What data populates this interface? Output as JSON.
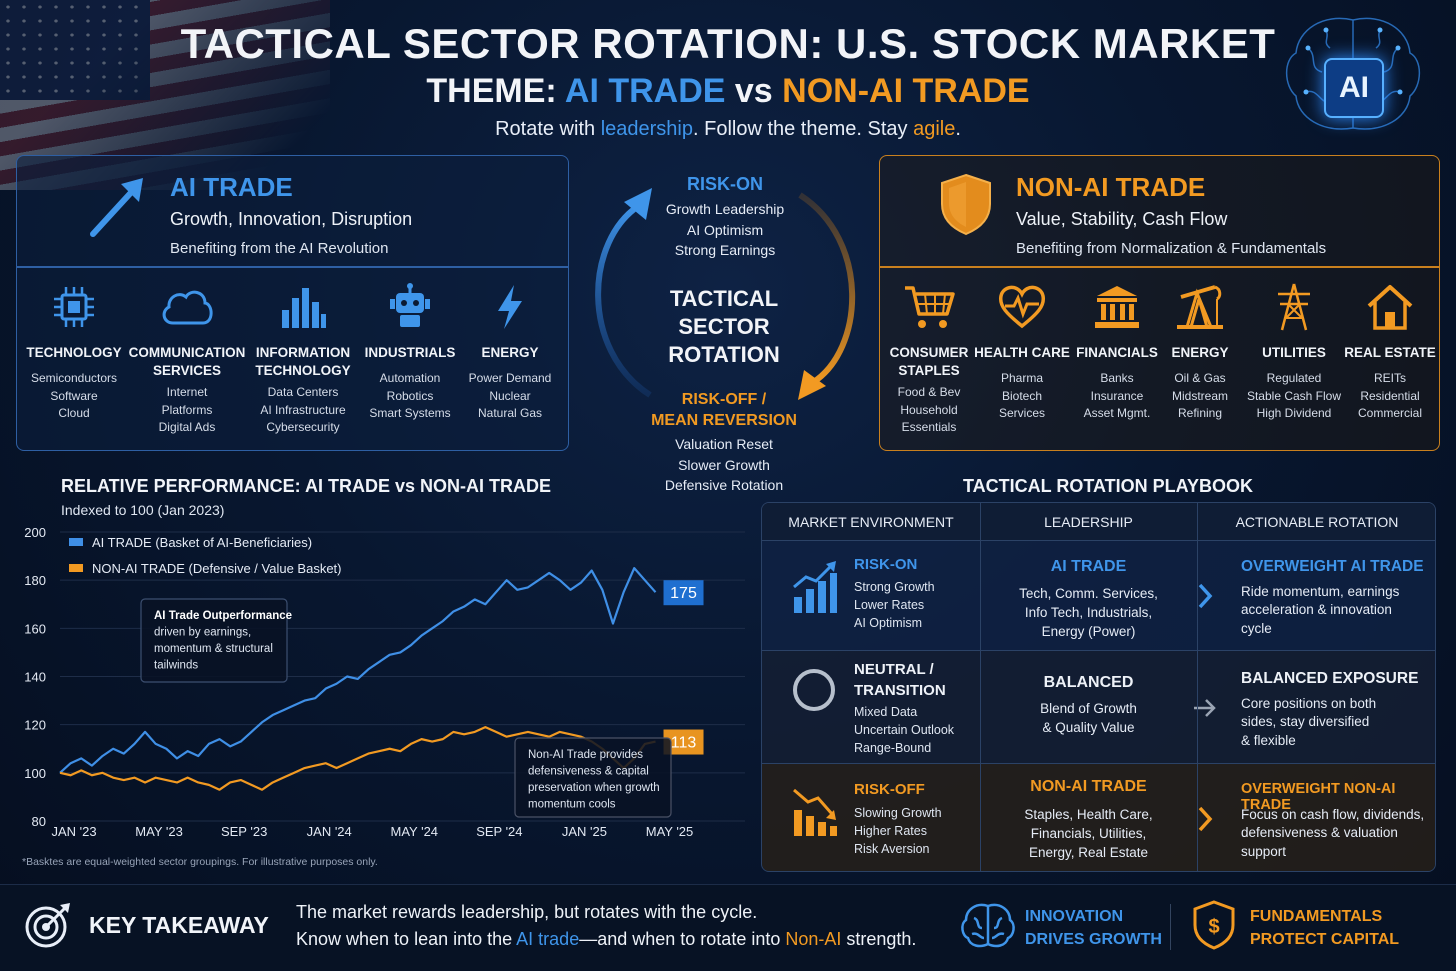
{
  "header": {
    "title": "TACTICAL SECTOR ROTATION: U.S. STOCK MARKET",
    "theme_prefix": "THEME: ",
    "theme_ai": "AI TRADE",
    "theme_vs": " vs ",
    "theme_nonai": "NON-AI TRADE",
    "tag_1": "Rotate with ",
    "tag_2": "leadership",
    "tag_3": ". Follow the theme. Stay ",
    "tag_4": "agile",
    "tag_5": ".",
    "badge": "AI"
  },
  "ai_panel": {
    "title": "AI TRADE",
    "subtitle": "Growth, Innovation, Disruption",
    "description": "Benefiting from the AI Revolution",
    "sectors": [
      {
        "icon": "chip-icon",
        "name_lines": [
          "TECHNOLOGY"
        ],
        "items": [
          "Semiconductors",
          "Software",
          "Cloud"
        ]
      },
      {
        "icon": "cloud-icon",
        "name_lines": [
          "COMMUNICATION",
          "SERVICES"
        ],
        "items": [
          "Internet",
          "Platforms",
          "Digital Ads"
        ]
      },
      {
        "icon": "bar-chart-icon",
        "name_lines": [
          "INFORMATION",
          "TECHNOLOGY"
        ],
        "items": [
          "Data Centers",
          "AI Infrastructure",
          "Cybersecurity"
        ]
      },
      {
        "icon": "robot-icon",
        "name_lines": [
          "INDUSTRIALS"
        ],
        "items": [
          "Automation",
          "Robotics",
          "Smart Systems"
        ]
      },
      {
        "icon": "lightning-icon",
        "name_lines": [
          "ENERGY"
        ],
        "items": [
          "Power Demand",
          "Nuclear",
          "Natural Gas"
        ]
      }
    ]
  },
  "nonai_panel": {
    "title": "NON-AI TRADE",
    "subtitle": "Value, Stability, Cash Flow",
    "description": "Benefiting from Normalization & Fundamentals",
    "sectors": [
      {
        "icon": "cart-icon",
        "name_lines": [
          "CONSUMER",
          "STAPLES"
        ],
        "items": [
          "Food & Bev",
          "Household",
          "Essentials"
        ]
      },
      {
        "icon": "heart-pulse-icon",
        "name_lines": [
          "HEALTH CARE"
        ],
        "items": [
          "Pharma",
          "Biotech",
          "Services"
        ]
      },
      {
        "icon": "bank-icon",
        "name_lines": [
          "FINANCIALS"
        ],
        "items": [
          "Banks",
          "Insurance",
          "Asset Mgmt."
        ]
      },
      {
        "icon": "oil-pump-icon",
        "name_lines": [
          "ENERGY"
        ],
        "items": [
          "Oil & Gas",
          "Midstream",
          "Refining"
        ]
      },
      {
        "icon": "power-tower-icon",
        "name_lines": [
          "UTILITIES"
        ],
        "items": [
          "Regulated",
          "Stable Cash Flow",
          "High Dividend"
        ]
      },
      {
        "icon": "house-icon",
        "name_lines": [
          "REAL ESTATE"
        ],
        "items": [
          "REITs",
          "Residential",
          "Commercial"
        ]
      }
    ]
  },
  "cycle": {
    "risk_on": "RISK-ON",
    "risk_on_items": [
      "Growth Leadership",
      "AI Optimism",
      "Strong Earnings"
    ],
    "center_lines": [
      "TACTICAL",
      "SECTOR",
      "ROTATION"
    ],
    "risk_off_lines": [
      "RISK-OFF /",
      "MEAN REVERSION"
    ],
    "risk_off_items": [
      "Valuation Reset",
      "Slower Growth",
      "Defensive Rotation"
    ]
  },
  "chart_data": {
    "type": "line",
    "title": "RELATIVE PERFORMANCE: AI TRADE vs NON-AI TRADE",
    "subtitle": "Indexed to 100 (Jan 2023)",
    "ylim": [
      80,
      200
    ],
    "yticks": [
      80,
      100,
      120,
      140,
      160,
      180,
      200
    ],
    "xlim": [
      0,
      29
    ],
    "x_ticks": [
      {
        "x": 0,
        "label": "JAN '23"
      },
      {
        "x": 4,
        "label": "MAY '23"
      },
      {
        "x": 8,
        "label": "SEP '23"
      },
      {
        "x": 12,
        "label": "JAN '24"
      },
      {
        "x": 16,
        "label": "MAY '24"
      },
      {
        "x": 20,
        "label": "SEP '24"
      },
      {
        "x": 24,
        "label": "JAN '25"
      },
      {
        "x": 28,
        "label": "MAY '25"
      }
    ],
    "grid": true,
    "legend_position": "top-left",
    "series": [
      {
        "name": "AI TRADE (Basket of AI-Beneficiaries)",
        "color": "#3f8fe6",
        "end_label": "175",
        "points": [
          [
            0,
            100
          ],
          [
            0.5,
            104
          ],
          [
            1,
            106
          ],
          [
            1.5,
            103
          ],
          [
            2,
            107
          ],
          [
            2.5,
            110
          ],
          [
            3,
            108
          ],
          [
            3.5,
            112
          ],
          [
            4,
            117
          ],
          [
            4.5,
            112
          ],
          [
            5,
            110
          ],
          [
            5.5,
            106
          ],
          [
            6,
            109
          ],
          [
            6.5,
            107
          ],
          [
            7,
            112
          ],
          [
            7.5,
            114
          ],
          [
            8,
            111
          ],
          [
            8.5,
            113
          ],
          [
            9,
            117
          ],
          [
            9.5,
            121
          ],
          [
            10,
            124
          ],
          [
            10.5,
            126
          ],
          [
            11,
            128
          ],
          [
            11.5,
            130
          ],
          [
            12,
            131
          ],
          [
            12.5,
            135
          ],
          [
            13,
            137
          ],
          [
            13.5,
            140
          ],
          [
            14,
            139
          ],
          [
            14.5,
            143
          ],
          [
            15,
            146
          ],
          [
            15.5,
            149
          ],
          [
            16,
            150
          ],
          [
            16.5,
            153
          ],
          [
            17,
            157
          ],
          [
            17.5,
            160
          ],
          [
            18,
            163
          ],
          [
            18.5,
            167
          ],
          [
            19,
            169
          ],
          [
            19.5,
            172
          ],
          [
            20,
            170
          ],
          [
            20.5,
            175
          ],
          [
            21,
            180
          ],
          [
            21.5,
            176
          ],
          [
            22,
            177
          ],
          [
            22.5,
            180
          ],
          [
            23,
            183
          ],
          [
            23.5,
            180
          ],
          [
            24,
            176
          ],
          [
            24.5,
            179
          ],
          [
            25,
            184
          ],
          [
            25.5,
            176
          ],
          [
            26,
            162
          ],
          [
            26.5,
            175
          ],
          [
            27,
            185
          ],
          [
            27.5,
            180
          ],
          [
            28,
            175
          ]
        ]
      },
      {
        "name": "NON-AI TRADE (Defensive / Value Basket)",
        "color": "#f29a22",
        "end_label": "113",
        "points": [
          [
            0,
            100
          ],
          [
            0.5,
            99
          ],
          [
            1,
            101
          ],
          [
            1.5,
            99
          ],
          [
            2,
            100
          ],
          [
            2.5,
            98
          ],
          [
            3,
            97
          ],
          [
            3.5,
            98
          ],
          [
            4,
            96
          ],
          [
            4.5,
            98
          ],
          [
            5,
            97
          ],
          [
            5.5,
            96
          ],
          [
            6,
            98
          ],
          [
            6.5,
            96
          ],
          [
            7,
            95
          ],
          [
            7.5,
            93
          ],
          [
            8,
            96
          ],
          [
            8.5,
            97
          ],
          [
            9,
            95
          ],
          [
            9.5,
            93
          ],
          [
            10,
            96
          ],
          [
            10.5,
            98
          ],
          [
            11,
            100
          ],
          [
            11.5,
            102
          ],
          [
            12,
            103
          ],
          [
            12.5,
            104
          ],
          [
            13,
            102
          ],
          [
            13.5,
            104
          ],
          [
            14,
            106
          ],
          [
            14.5,
            108
          ],
          [
            15,
            109
          ],
          [
            15.5,
            110
          ],
          [
            16,
            109
          ],
          [
            16.5,
            112
          ],
          [
            17,
            114
          ],
          [
            17.5,
            113
          ],
          [
            18,
            114
          ],
          [
            18.5,
            117
          ],
          [
            19,
            116
          ],
          [
            19.5,
            117
          ],
          [
            20,
            119
          ],
          [
            20.5,
            117
          ],
          [
            21,
            115
          ],
          [
            21.5,
            116
          ],
          [
            22,
            117
          ],
          [
            22.5,
            116
          ],
          [
            23,
            115
          ],
          [
            23.5,
            117
          ],
          [
            24,
            116
          ],
          [
            24.5,
            115
          ],
          [
            25,
            113
          ],
          [
            25.5,
            110
          ],
          [
            26,
            106
          ],
          [
            26.5,
            102
          ],
          [
            27,
            106
          ],
          [
            27.5,
            112
          ],
          [
            28,
            113
          ]
        ]
      }
    ],
    "annotations": [
      {
        "lines": [
          "AI Trade Outperformance",
          "driven by earnings,",
          "momentum & structural",
          "tailwinds"
        ]
      },
      {
        "lines": [
          "Non-AI Trade provides",
          "defensiveness & capital",
          "preservation when growth",
          "momentum cools"
        ]
      }
    ]
  },
  "chart_footnote": "*Basktes are equal-weighted sector groupings. For illustrative purposes only.",
  "playbook": {
    "title": "TACTICAL ROTATION PLAYBOOK",
    "columns": [
      "MARKET ENVIRONMENT",
      "LEADERSHIP",
      "ACTIONABLE ROTATION"
    ],
    "rows": [
      {
        "env_title": [
          "RISK-ON"
        ],
        "env_lines": [
          "Strong Growth",
          "Lower Rates",
          "AI Optimism"
        ],
        "lead_title": "AI TRADE",
        "lead_lines": [
          "Tech, Comm. Services,",
          "Info Tech, Industrials,",
          "Energy (Power)"
        ],
        "action_title": "OVERWEIGHT AI TRADE",
        "action_lines": [
          "Ride momentum, earnings",
          "acceleration & innovation",
          "cycle"
        ]
      },
      {
        "env_title": [
          "NEUTRAL /",
          "TRANSITION"
        ],
        "env_lines": [
          "Mixed Data",
          "Uncertain Outlook",
          "Range-Bound"
        ],
        "lead_title": "BALANCED",
        "lead_lines": [
          "Blend of Growth",
          "& Quality Value"
        ],
        "action_title": "BALANCED EXPOSURE",
        "action_lines": [
          "Core positions on both",
          "sides, stay diversified",
          "& flexible"
        ]
      },
      {
        "env_title": [
          "RISK-OFF"
        ],
        "env_lines": [
          "Slowing Growth",
          "Higher Rates",
          "Risk Aversion"
        ],
        "lead_title": "NON-AI TRADE",
        "lead_lines": [
          "Staples, Health Care,",
          "Financials, Utilities,",
          "Energy, Real Estate"
        ],
        "action_title": "OVERWEIGHT NON-AI TRADE",
        "action_lines": [
          "Focus on cash flow, dividends,",
          "defensiveness & valuation",
          "support"
        ]
      }
    ]
  },
  "takeaway": {
    "label": "KEY TAKEAWAY",
    "line1": "The market rewards leadership, but rotates with the cycle.",
    "line2_a": "Know when to lean into the ",
    "line2_b": "AI trade",
    "line2_c": "—and when to rotate into ",
    "line2_d": "Non-AI",
    "line2_e": " strength.",
    "right_ai": [
      "INNOVATION",
      "DRIVES GROWTH"
    ],
    "right_nonai": [
      "FUNDAMENTALS",
      "PROTECT CAPITAL"
    ]
  }
}
